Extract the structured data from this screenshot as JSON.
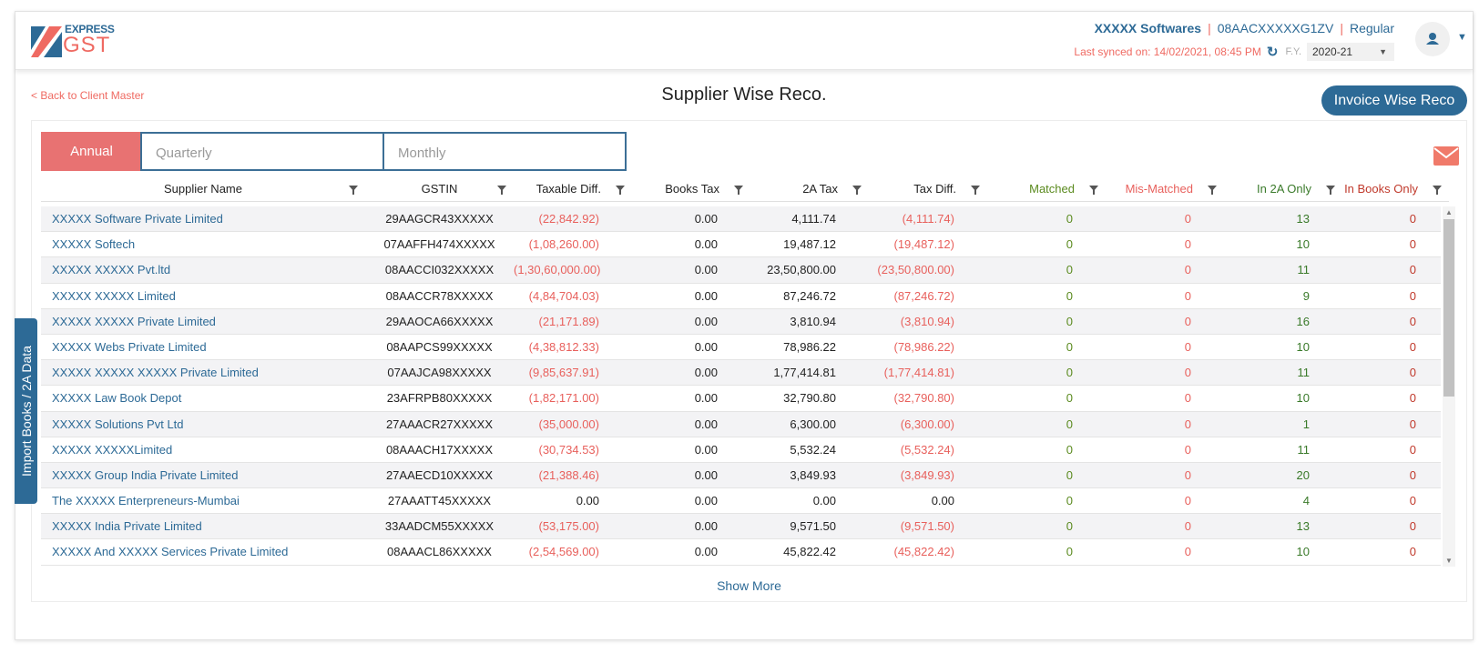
{
  "header": {
    "logo": {
      "line1": "EXPRESS",
      "line2": "GST"
    },
    "company": "XXXXX Softwares",
    "gstin": "08AACXXXXXG1ZV",
    "type": "Regular",
    "sync_label": "Last synced on: 14/02/2021, 08:45 PM",
    "fy_label": "F.Y.",
    "fy_value": "2020-21"
  },
  "page": {
    "back_link": "< Back to Client Master",
    "title": "Supplier Wise Reco.",
    "invoice_button": "Invoice Wise Reco",
    "side_tab": "Import Books / 2A Data",
    "show_more": "Show More"
  },
  "tabs": [
    "Annual",
    "Quarterly",
    "Monthly"
  ],
  "colors": {
    "accent": "#2d6a96",
    "active_tab": "#e87272",
    "negative": "#e8605c",
    "matched": "#5a8a1e",
    "in_2a": "#3a7a2a",
    "in_books": "#c0392b"
  },
  "table": {
    "columns": [
      "Supplier Name",
      "GSTIN",
      "Taxable Diff.",
      "Books Tax",
      "2A Tax",
      "Tax Diff.",
      "Matched",
      "Mis-Matched",
      "In 2A Only",
      "In Books Only"
    ],
    "rows": [
      [
        "XXXXX Software Private Limited",
        "29AAGCR43XXXXX",
        "(22,842.92)",
        "0.00",
        "4,111.74",
        "(4,111.74)",
        "0",
        "0",
        "13",
        "0"
      ],
      [
        "XXXXX Softech",
        "07AAFFH474XXXXX",
        "(1,08,260.00)",
        "0.00",
        "19,487.12",
        "(19,487.12)",
        "0",
        "0",
        "10",
        "0"
      ],
      [
        "XXXXX XXXXX Pvt.ltd",
        "08AACCI032XXXXX",
        "(1,30,60,000.00)",
        "0.00",
        "23,50,800.00",
        "(23,50,800.00)",
        "0",
        "0",
        "11",
        "0"
      ],
      [
        "XXXXX XXXXX Limited",
        "08AACCR78XXXXX",
        "(4,84,704.03)",
        "0.00",
        "87,246.72",
        "(87,246.72)",
        "0",
        "0",
        "9",
        "0"
      ],
      [
        "XXXXX XXXXX Private Limited",
        "29AAOCA66XXXXX",
        "(21,171.89)",
        "0.00",
        "3,810.94",
        "(3,810.94)",
        "0",
        "0",
        "16",
        "0"
      ],
      [
        "XXXXX Webs Private Limited",
        "08AAPCS99XXXXX",
        "(4,38,812.33)",
        "0.00",
        "78,986.22",
        "(78,986.22)",
        "0",
        "0",
        "10",
        "0"
      ],
      [
        "XXXXX XXXXX XXXXX Private Limited",
        "07AAJCA98XXXXX",
        "(9,85,637.91)",
        "0.00",
        "1,77,414.81",
        "(1,77,414.81)",
        "0",
        "0",
        "11",
        "0"
      ],
      [
        "XXXXX Law Book Depot",
        "23AFRPB80XXXXX",
        "(1,82,171.00)",
        "0.00",
        "32,790.80",
        "(32,790.80)",
        "0",
        "0",
        "10",
        "0"
      ],
      [
        "XXXXX Solutions Pvt Ltd",
        "27AAACR27XXXXX",
        "(35,000.00)",
        "0.00",
        "6,300.00",
        "(6,300.00)",
        "0",
        "0",
        "1",
        "0"
      ],
      [
        "XXXXX XXXXXLimited",
        "08AAACH17XXXXX",
        "(30,734.53)",
        "0.00",
        "5,532.24",
        "(5,532.24)",
        "0",
        "0",
        "11",
        "0"
      ],
      [
        "XXXXX Group India Private Limited",
        "27AAECD10XXXXX",
        "(21,388.46)",
        "0.00",
        "3,849.93",
        "(3,849.93)",
        "0",
        "0",
        "20",
        "0"
      ],
      [
        "The XXXXX Enterpreneurs-Mumbai",
        "27AAATT45XXXXX",
        "0.00",
        "0.00",
        "0.00",
        "0.00",
        "0",
        "0",
        "4",
        "0"
      ],
      [
        "XXXXX India Private Limited",
        "33AADCM55XXXXX",
        "(53,175.00)",
        "0.00",
        "9,571.50",
        "(9,571.50)",
        "0",
        "0",
        "13",
        "0"
      ],
      [
        "XXXXX And XXXXX Services Private Limited",
        "08AAACL86XXXXX",
        "(2,54,569.00)",
        "0.00",
        "45,822.42",
        "(45,822.42)",
        "0",
        "0",
        "10",
        "0"
      ]
    ]
  }
}
